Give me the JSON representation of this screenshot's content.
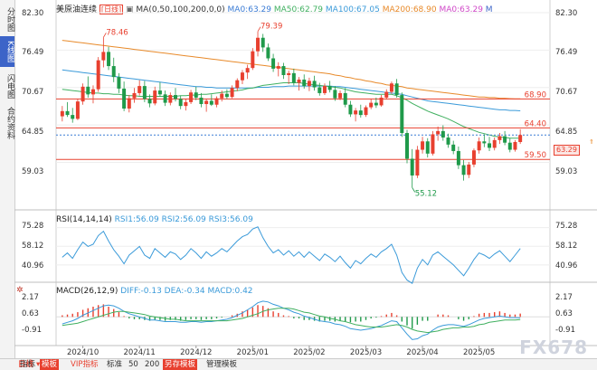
{
  "left_tabs": [
    {
      "label": "分时图",
      "active": false
    },
    {
      "label": "K线图",
      "active": true
    },
    {
      "label": "闪电图",
      "active": false
    },
    {
      "label": "合约资料",
      "active": false
    }
  ],
  "header": {
    "symbol": "美原油连续",
    "period": "日线",
    "ma_label": "MA(0,50,100,200,0,0)",
    "ma_values": [
      {
        "text": "MA0:63.29",
        "color": "#3a7bd5"
      },
      {
        "text": "MA50:62.79",
        "color": "#40b060"
      },
      {
        "text": "MA100:67.05",
        "color": "#3a9ad9"
      },
      {
        "text": "MA200:68.90",
        "color": "#e88a2a"
      },
      {
        "text": "MA0:63.29",
        "color": "#d048c8"
      }
    ],
    "minimize": "M"
  },
  "price_axis": [
    "82.30",
    "76.49",
    "70.67",
    "64.85",
    "59.03"
  ],
  "price_tags": {
    "last": "63.29",
    "high_label": "78.46",
    "high2_label": "79.39",
    "low_label": "55.12",
    "line_68": "68.90",
    "line_64": "64.40",
    "line_59": "59.50"
  },
  "rsi": {
    "label": "RSI(14,14,14)",
    "values": [
      "RSI1:56.09",
      "RSI2:56.09",
      "RSI3:56.09"
    ],
    "axis": [
      "75.28",
      "58.12",
      "40.96"
    ]
  },
  "macd": {
    "label": "MACD(26,12,9)",
    "values": [
      "DIFF:-0.13",
      "DEA:-0.34",
      "MACD:0.42"
    ],
    "axis": [
      "2.17",
      "0.63",
      "-0.91"
    ]
  },
  "x_axis": [
    "2024/10",
    "2024/11",
    "2024/12",
    "2025/01",
    "2025/02",
    "2025/03",
    "2025/04",
    "2025/05"
  ],
  "bottom_bar": {
    "period": "日线",
    "items": [
      "指标",
      "模板",
      "VIP指标",
      "标准",
      "50",
      "200",
      "另存模板",
      "管理模板"
    ]
  },
  "watermark": "FX678",
  "colors": {
    "up": "#e8402f",
    "down": "#1f9a4a",
    "accent": "#3c64c8"
  },
  "chart_data": {
    "type": "candlestick",
    "title": "美原油连续 日线",
    "ylim": [
      52.5,
      82.3
    ],
    "candles": [
      [
        66.2,
        67.8,
        65.4,
        67.0
      ],
      [
        67.0,
        68.4,
        66.1,
        66.4
      ],
      [
        66.4,
        67.5,
        65.2,
        65.8
      ],
      [
        65.8,
        68.9,
        65.6,
        68.5
      ],
      [
        68.5,
        71.3,
        68.0,
        70.8
      ],
      [
        70.8,
        72.4,
        69.1,
        69.6
      ],
      [
        69.6,
        71.0,
        68.2,
        70.4
      ],
      [
        70.4,
        75.4,
        70.0,
        74.9
      ],
      [
        74.9,
        78.46,
        73.8,
        76.2
      ],
      [
        76.2,
        77.0,
        73.4,
        74.0
      ],
      [
        74.0,
        75.3,
        71.5,
        72.3
      ],
      [
        72.3,
        72.9,
        69.8,
        70.5
      ],
      [
        70.5,
        71.6,
        67.0,
        67.4
      ],
      [
        67.4,
        69.5,
        66.8,
        69.0
      ],
      [
        69.0,
        70.6,
        68.3,
        69.8
      ],
      [
        69.8,
        71.8,
        69.4,
        70.9
      ],
      [
        70.9,
        71.7,
        68.4,
        68.9
      ],
      [
        68.9,
        69.6,
        67.6,
        68.2
      ],
      [
        68.2,
        70.8,
        67.9,
        70.2
      ],
      [
        70.2,
        71.5,
        69.3,
        69.6
      ],
      [
        69.6,
        70.2,
        67.8,
        68.3
      ],
      [
        68.3,
        69.9,
        67.9,
        69.5
      ],
      [
        69.5,
        70.6,
        68.5,
        68.9
      ],
      [
        68.9,
        69.4,
        67.3,
        67.8
      ],
      [
        67.8,
        68.9,
        67.1,
        68.4
      ],
      [
        68.4,
        70.3,
        68.1,
        69.9
      ],
      [
        69.9,
        70.8,
        68.7,
        69.1
      ],
      [
        69.1,
        69.8,
        67.6,
        68.1
      ],
      [
        68.1,
        68.9,
        66.9,
        68.6
      ],
      [
        68.6,
        69.6,
        67.8,
        68.0
      ],
      [
        68.0,
        69.3,
        67.6,
        69.0
      ],
      [
        69.0,
        70.2,
        68.5,
        69.7
      ],
      [
        69.7,
        70.4,
        68.9,
        69.2
      ],
      [
        69.2,
        71.0,
        69.0,
        70.6
      ],
      [
        70.6,
        72.1,
        70.1,
        71.8
      ],
      [
        71.8,
        73.4,
        71.2,
        73.0
      ],
      [
        73.0,
        74.2,
        72.0,
        73.7
      ],
      [
        73.7,
        76.8,
        73.4,
        76.3
      ],
      [
        76.3,
        79.39,
        75.5,
        78.4
      ],
      [
        78.4,
        79.0,
        76.2,
        76.9
      ],
      [
        76.9,
        77.5,
        74.8,
        75.2
      ],
      [
        75.2,
        75.9,
        73.1,
        73.6
      ],
      [
        73.6,
        74.6,
        72.4,
        74.0
      ],
      [
        74.0,
        74.5,
        72.0,
        72.6
      ],
      [
        72.6,
        73.3,
        71.2,
        72.9
      ],
      [
        72.9,
        73.6,
        71.0,
        71.4
      ],
      [
        71.4,
        72.3,
        70.2,
        71.9
      ],
      [
        71.9,
        72.7,
        70.5,
        70.9
      ],
      [
        70.9,
        72.2,
        70.1,
        71.7
      ],
      [
        71.7,
        72.5,
        70.2,
        70.7
      ],
      [
        70.7,
        71.4,
        69.4,
        69.8
      ],
      [
        69.8,
        71.3,
        69.5,
        70.9
      ],
      [
        70.9,
        71.7,
        69.9,
        70.3
      ],
      [
        70.3,
        70.9,
        68.6,
        69.0
      ],
      [
        69.0,
        70.2,
        68.7,
        69.8
      ],
      [
        69.8,
        70.6,
        67.6,
        68.0
      ],
      [
        68.0,
        68.6,
        66.1,
        66.5
      ],
      [
        66.5,
        67.5,
        65.4,
        67.1
      ],
      [
        67.1,
        68.0,
        66.0,
        66.4
      ],
      [
        66.4,
        67.9,
        66.1,
        67.6
      ],
      [
        67.6,
        68.9,
        67.3,
        68.3
      ],
      [
        68.3,
        69.1,
        67.5,
        67.9
      ],
      [
        67.9,
        69.5,
        67.7,
        69.1
      ],
      [
        69.1,
        70.4,
        68.8,
        70.0
      ],
      [
        70.0,
        71.6,
        69.7,
        71.3
      ],
      [
        71.3,
        72.0,
        69.1,
        69.5
      ],
      [
        69.5,
        69.9,
        63.0,
        63.6
      ],
      [
        63.6,
        64.1,
        58.9,
        59.6
      ],
      [
        59.6,
        61.1,
        55.12,
        57.0
      ],
      [
        57.0,
        61.6,
        56.6,
        61.0
      ],
      [
        61.0,
        63.0,
        60.4,
        62.3
      ],
      [
        62.3,
        62.8,
        59.8,
        60.4
      ],
      [
        60.4,
        63.9,
        60.1,
        63.4
      ],
      [
        63.4,
        64.6,
        62.4,
        63.9
      ],
      [
        63.9,
        64.8,
        62.4,
        62.9
      ],
      [
        62.9,
        63.5,
        61.3,
        61.8
      ],
      [
        61.8,
        62.4,
        60.3,
        60.8
      ],
      [
        60.8,
        61.5,
        58.0,
        58.6
      ],
      [
        58.6,
        59.4,
        56.2,
        57.1
      ],
      [
        57.1,
        59.1,
        56.6,
        58.7
      ],
      [
        58.7,
        61.2,
        58.3,
        60.9
      ],
      [
        60.9,
        62.9,
        60.4,
        62.3
      ],
      [
        62.3,
        63.4,
        61.4,
        62.0
      ],
      [
        62.0,
        63.0,
        60.8,
        61.3
      ],
      [
        61.3,
        62.9,
        60.9,
        62.5
      ],
      [
        62.5,
        63.6,
        61.9,
        63.1
      ],
      [
        63.1,
        63.9,
        61.7,
        62.1
      ],
      [
        62.1,
        62.8,
        60.6,
        61.0
      ],
      [
        61.0,
        62.5,
        60.7,
        62.2
      ],
      [
        62.2,
        64.2,
        61.9,
        63.29
      ]
    ],
    "ma50": [
      70.4,
      70.3,
      70.2,
      70.1,
      70.0,
      69.9,
      69.8,
      69.8,
      69.7,
      69.7,
      69.6,
      69.6,
      69.5,
      69.4,
      69.4,
      69.3,
      69.3,
      69.3,
      69.3,
      69.3,
      69.3,
      69.3,
      69.3,
      69.4,
      69.4,
      69.5,
      69.5,
      69.6,
      69.6,
      69.7,
      69.8,
      69.9,
      70.0,
      70.1,
      70.2,
      70.3,
      70.5,
      70.6,
      70.8,
      71.0,
      71.1,
      71.2,
      71.3,
      71.4,
      71.4,
      71.4,
      71.4,
      71.3,
      71.2,
      71.1,
      71.0,
      70.9,
      70.8,
      70.7,
      70.6,
      70.4,
      70.2,
      70.0,
      69.9,
      69.8,
      69.7,
      69.6,
      69.6,
      69.6,
      69.6,
      69.4,
      69.1,
      68.7,
      68.2,
      67.8,
      67.4,
      67.0,
      66.7,
      66.4,
      66.1,
      65.8,
      65.4,
      65.0,
      64.6,
      64.3,
      64.0,
      63.7,
      63.5,
      63.3,
      63.1,
      63.0,
      62.9,
      62.8,
      62.8,
      62.79
    ],
    "ma100": [
      73.4,
      73.3,
      73.2,
      73.1,
      73.0,
      72.9,
      72.8,
      72.7,
      72.6,
      72.5,
      72.4,
      72.3,
      72.2,
      72.1,
      72.0,
      71.9,
      71.8,
      71.7,
      71.6,
      71.5,
      71.4,
      71.3,
      71.2,
      71.1,
      71.0,
      70.9,
      70.8,
      70.8,
      70.7,
      70.7,
      70.6,
      70.6,
      70.6,
      70.6,
      70.6,
      70.6,
      70.6,
      70.6,
      70.7,
      70.7,
      70.7,
      70.8,
      70.8,
      70.8,
      70.9,
      70.9,
      70.9,
      70.9,
      70.9,
      70.9,
      70.9,
      70.9,
      70.9,
      70.8,
      70.8,
      70.7,
      70.6,
      70.5,
      70.4,
      70.3,
      70.2,
      70.1,
      70.0,
      69.9,
      69.8,
      69.7,
      69.6,
      69.4,
      69.2,
      69.0,
      68.8,
      68.6,
      68.5,
      68.4,
      68.3,
      68.2,
      68.1,
      68.0,
      67.9,
      67.8,
      67.7,
      67.6,
      67.5,
      67.4,
      67.3,
      67.2,
      67.2,
      67.1,
      67.1,
      67.05
    ],
    "ma200": [
      78.0,
      77.9,
      77.8,
      77.7,
      77.6,
      77.5,
      77.4,
      77.3,
      77.2,
      77.1,
      77.0,
      76.9,
      76.8,
      76.7,
      76.6,
      76.5,
      76.4,
      76.3,
      76.2,
      76.1,
      76.0,
      75.9,
      75.8,
      75.7,
      75.6,
      75.5,
      75.4,
      75.3,
      75.2,
      75.1,
      75.0,
      74.9,
      74.8,
      74.7,
      74.6,
      74.5,
      74.4,
      74.3,
      74.2,
      74.1,
      74.0,
      73.9,
      73.8,
      73.7,
      73.6,
      73.5,
      73.4,
      73.3,
      73.2,
      73.1,
      73.0,
      72.9,
      72.8,
      72.6,
      72.5,
      72.3,
      72.2,
      72.0,
      71.9,
      71.7,
      71.6,
      71.4,
      71.3,
      71.1,
      71.0,
      70.9,
      70.8,
      70.6,
      70.5,
      70.4,
      70.3,
      70.2,
      70.1,
      70.0,
      69.9,
      69.8,
      69.7,
      69.6,
      69.5,
      69.4,
      69.3,
      69.2,
      69.2,
      69.1,
      69.1,
      69.0,
      69.0,
      68.95,
      68.9,
      68.9
    ],
    "hlines": [
      68.9,
      64.4,
      59.5
    ],
    "rsi": [
      48,
      52,
      47,
      55,
      62,
      58,
      60,
      68,
      72,
      63,
      55,
      49,
      42,
      50,
      54,
      58,
      50,
      47,
      56,
      52,
      48,
      53,
      51,
      46,
      50,
      56,
      52,
      47,
      53,
      49,
      52,
      56,
      53,
      58,
      63,
      67,
      69,
      74,
      76,
      66,
      58,
      52,
      55,
      50,
      54,
      49,
      53,
      48,
      53,
      49,
      45,
      51,
      48,
      44,
      49,
      43,
      38,
      45,
      42,
      47,
      51,
      48,
      53,
      56,
      60,
      50,
      34,
      27,
      24,
      38,
      46,
      41,
      50,
      53,
      49,
      45,
      41,
      36,
      31,
      38,
      46,
      52,
      50,
      47,
      51,
      54,
      49,
      44,
      50,
      56.09
    ],
    "rsi_ylim": [
      30,
      80
    ],
    "macd_hist": [
      0.2,
      0.3,
      0.4,
      0.6,
      0.9,
      1.1,
      1.3,
      1.5,
      1.6,
      1.3,
      1.0,
      0.6,
      0.1,
      -0.2,
      -0.3,
      -0.3,
      -0.4,
      -0.5,
      -0.4,
      -0.4,
      -0.5,
      -0.4,
      -0.4,
      -0.5,
      -0.4,
      -0.3,
      -0.3,
      -0.4,
      -0.3,
      -0.3,
      -0.2,
      -0.1,
      0.0,
      0.2,
      0.4,
      0.7,
      0.9,
      1.2,
      1.5,
      1.4,
      1.1,
      0.7,
      0.5,
      0.2,
      0.1,
      -0.2,
      -0.2,
      -0.4,
      -0.4,
      -0.5,
      -0.6,
      -0.5,
      -0.5,
      -0.6,
      -0.5,
      -0.6,
      -0.7,
      -0.6,
      -0.6,
      -0.4,
      -0.2,
      -0.1,
      0.1,
      0.3,
      0.5,
      0.2,
      -0.6,
      -1.1,
      -1.5,
      -1.0,
      -0.5,
      -0.5,
      0.0,
      0.3,
      0.3,
      0.2,
      0.0,
      -0.3,
      -0.5,
      -0.3,
      0.1,
      0.4,
      0.5,
      0.5,
      0.6,
      0.7,
      0.5,
      0.3,
      0.3,
      0.42
    ],
    "macd_diff": [
      -0.9,
      -0.7,
      -0.5,
      -0.2,
      0.2,
      0.5,
      0.8,
      1.1,
      1.4,
      1.5,
      1.4,
      1.1,
      0.7,
      0.4,
      0.2,
      0.0,
      -0.2,
      -0.4,
      -0.4,
      -0.5,
      -0.6,
      -0.6,
      -0.6,
      -0.7,
      -0.7,
      -0.6,
      -0.6,
      -0.7,
      -0.6,
      -0.6,
      -0.5,
      -0.4,
      -0.3,
      -0.1,
      0.2,
      0.5,
      0.9,
      1.3,
      1.8,
      2.0,
      1.9,
      1.6,
      1.4,
      1.1,
      0.9,
      0.6,
      0.4,
      0.1,
      -0.1,
      -0.3,
      -0.5,
      -0.6,
      -0.7,
      -0.9,
      -1.0,
      -1.2,
      -1.5,
      -1.6,
      -1.7,
      -1.6,
      -1.5,
      -1.3,
      -1.1,
      -0.8,
      -0.5,
      -0.6,
      -1.4,
      -2.2,
      -2.9,
      -2.8,
      -2.4,
      -2.2,
      -1.7,
      -1.3,
      -1.1,
      -1.0,
      -1.0,
      -1.1,
      -1.2,
      -1.0,
      -0.7,
      -0.4,
      -0.2,
      -0.1,
      0.0,
      0.1,
      0.0,
      -0.1,
      -0.1,
      -0.13
    ],
    "macd_dea": [
      -1.1,
      -1.0,
      -0.9,
      -0.8,
      -0.6,
      -0.4,
      -0.2,
      0.0,
      0.2,
      0.4,
      0.6,
      0.7,
      0.7,
      0.6,
      0.5,
      0.4,
      0.3,
      0.1,
      0.0,
      -0.1,
      -0.2,
      -0.3,
      -0.3,
      -0.4,
      -0.5,
      -0.5,
      -0.5,
      -0.5,
      -0.5,
      -0.5,
      -0.5,
      -0.5,
      -0.5,
      -0.4,
      -0.3,
      -0.2,
      0.0,
      0.2,
      0.4,
      0.7,
      0.9,
      1.0,
      1.1,
      1.1,
      1.1,
      1.0,
      0.8,
      0.6,
      0.5,
      0.3,
      0.1,
      0.0,
      -0.2,
      -0.3,
      -0.5,
      -0.6,
      -0.8,
      -1.0,
      -1.1,
      -1.2,
      -1.3,
      -1.3,
      -1.3,
      -1.2,
      -1.1,
      -1.0,
      -1.1,
      -1.3,
      -1.6,
      -1.8,
      -1.9,
      -2.0,
      -1.9,
      -1.8,
      -1.6,
      -1.5,
      -1.4,
      -1.4,
      -1.3,
      -1.3,
      -1.2,
      -1.0,
      -0.9,
      -0.7,
      -0.6,
      -0.5,
      -0.4,
      -0.4,
      -0.4,
      -0.34
    ],
    "macd_ylim": [
      -3.2,
      2.8
    ]
  }
}
